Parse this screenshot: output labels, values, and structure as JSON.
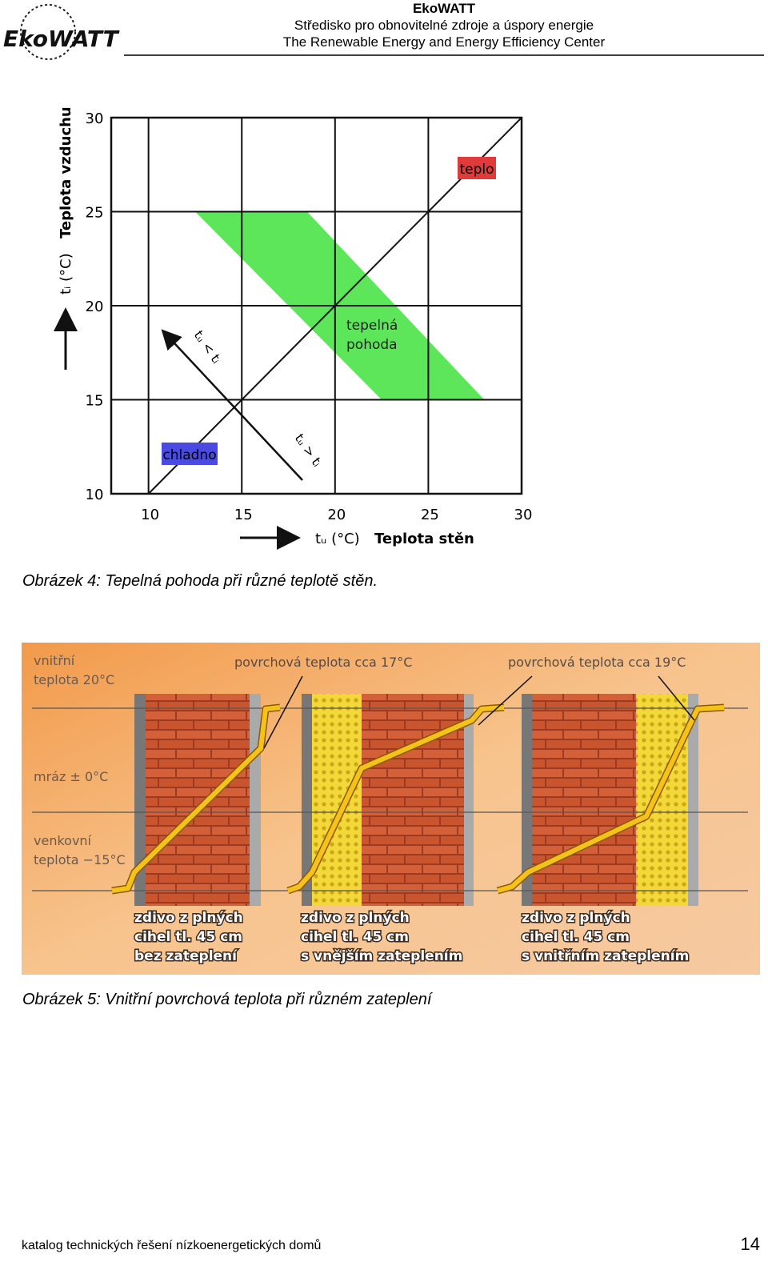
{
  "header": {
    "logo": "EkoWATT",
    "title": "EkoWATT",
    "subtitle_cz": "Středisko pro obnovitelné zdroje a úspory energie",
    "subtitle_en": "The Renewable Energy and Energy Efficiency Center"
  },
  "figure1": {
    "chart_data": {
      "type": "diagram",
      "x_symbol": "tᵤ (°C)",
      "x_label": "Teplota stěn",
      "y_symbol": "tᵢ (°C)",
      "y_label": "Teplota vzduchu",
      "xlim": [
        8,
        30
      ],
      "ylim": [
        10,
        30
      ],
      "xticks": [
        10,
        15,
        20,
        25,
        30
      ],
      "yticks": [
        10,
        15,
        20,
        25,
        30
      ],
      "grid": true,
      "comfort_zone": {
        "label": [
          "tepelná",
          "pohoda"
        ],
        "color": "#5ee65a",
        "points": [
          [
            12.5,
            25
          ],
          [
            18.5,
            25
          ],
          [
            28,
            15
          ],
          [
            22.5,
            15
          ]
        ]
      },
      "warm_label": "teplo",
      "warm_color": "#e03a3a",
      "cold_label": "chladno",
      "cold_color": "#4a4ae0",
      "arrow_up_label": "tᵤ < tᵢ",
      "arrow_down_label": "tᵤ > tᵢ"
    },
    "caption": "Obrázek 4: Tepelná pohoda při různé teplotě stěn."
  },
  "figure2": {
    "inner_temp": [
      "vnitřní",
      "teplota 20°C"
    ],
    "frost": "mráz ± 0°C",
    "outer_temp": [
      "venkovní",
      "teplota −15°C"
    ],
    "surface_17": "povrchová teplota cca 17°C",
    "surface_19": "povrchová teplota cca 19°C",
    "walls": [
      [
        "zdivo z plných",
        "cihel tl. 45 cm",
        "bez zateplení"
      ],
      [
        "zdivo z plných",
        "cihel tl. 45 cm",
        "s vnějším  zateplením"
      ],
      [
        "zdivo z plných",
        "cihel tl. 45 cm",
        "s vnitřním  zateplením"
      ]
    ],
    "caption": "Obrázek 5: Vnitřní povrchová teplota při různém zateplení"
  },
  "footer": {
    "text": "katalog technických řešení nízkoenergetických domů",
    "page": "14"
  }
}
